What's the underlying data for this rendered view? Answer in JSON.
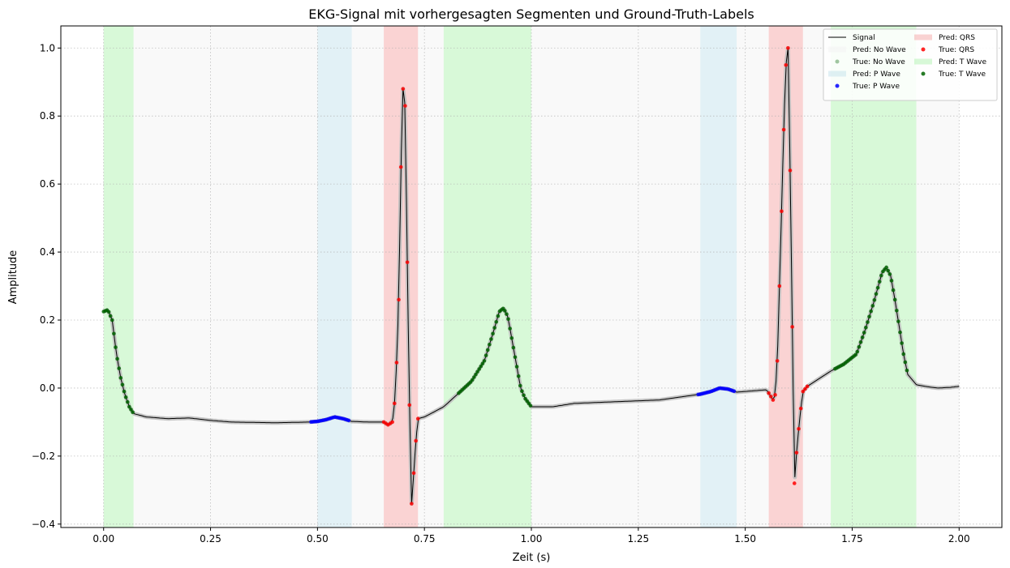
{
  "chart_data": {
    "type": "line",
    "title": "EKG-Signal mit vorhergesagten Segmenten und Ground-Truth-Labels",
    "xlabel": "Zeit (s)",
    "ylabel": "Amplitude",
    "xlim": [
      -0.1,
      2.1
    ],
    "ylim": [
      -0.41,
      1.065
    ],
    "x_ticks": [
      0.0,
      0.25,
      0.5,
      0.75,
      1.0,
      1.25,
      1.5,
      1.75,
      2.0
    ],
    "x_tick_labels": [
      "0.00",
      "0.25",
      "0.50",
      "0.75",
      "1.00",
      "1.25",
      "1.50",
      "1.75",
      "2.00"
    ],
    "y_ticks": [
      -0.4,
      -0.2,
      0.0,
      0.2,
      0.4,
      0.6,
      0.8,
      1.0
    ],
    "y_tick_labels": [
      "−0.4",
      "−0.2",
      "0.0",
      "0.2",
      "0.4",
      "0.6",
      "0.8",
      "1.0"
    ],
    "grid": true,
    "legend_position": "top-right",
    "colors": {
      "signal": "#000000",
      "pred_no_wave": "#f2f2f2",
      "true_no_wave": "#8fbc8f",
      "pred_p_wave": "#add8e6",
      "true_p_wave": "#0000ff",
      "pred_qrs": "#f08080",
      "true_qrs": "#ff0000",
      "pred_t_wave": "#90ee90",
      "true_t_wave": "#006400"
    },
    "legend": [
      {
        "key": "signal",
        "label": "Signal",
        "kind": "line"
      },
      {
        "key": "pred_no_wave",
        "label": "Pred: No Wave",
        "kind": "patch"
      },
      {
        "key": "true_no_wave",
        "label": "True: No Wave",
        "kind": "dot"
      },
      {
        "key": "pred_p_wave",
        "label": "Pred: P Wave",
        "kind": "patch"
      },
      {
        "key": "true_p_wave",
        "label": "True: P Wave",
        "kind": "dot"
      },
      {
        "key": "pred_qrs",
        "label": "Pred: QRS",
        "kind": "patch"
      },
      {
        "key": "true_qrs",
        "label": "True: QRS",
        "kind": "dot"
      },
      {
        "key": "pred_t_wave",
        "label": "Pred: T Wave",
        "kind": "patch"
      },
      {
        "key": "true_t_wave",
        "label": "True: T Wave",
        "kind": "dot"
      }
    ],
    "predicted_segments": [
      {
        "class": "pred_t_wave",
        "start": 0.0,
        "end": 0.07
      },
      {
        "class": "pred_no_wave",
        "start": 0.07,
        "end": 0.5
      },
      {
        "class": "pred_p_wave",
        "start": 0.5,
        "end": 0.58
      },
      {
        "class": "pred_no_wave",
        "start": 0.58,
        "end": 0.655
      },
      {
        "class": "pred_qrs",
        "start": 0.655,
        "end": 0.735
      },
      {
        "class": "pred_no_wave",
        "start": 0.735,
        "end": 0.795
      },
      {
        "class": "pred_t_wave",
        "start": 0.795,
        "end": 1.0
      },
      {
        "class": "pred_no_wave",
        "start": 1.0,
        "end": 1.395
      },
      {
        "class": "pred_p_wave",
        "start": 1.395,
        "end": 1.48
      },
      {
        "class": "pred_no_wave",
        "start": 1.48,
        "end": 1.555
      },
      {
        "class": "pred_qrs",
        "start": 1.555,
        "end": 1.635
      },
      {
        "class": "pred_no_wave",
        "start": 1.635,
        "end": 1.7
      },
      {
        "class": "pred_t_wave",
        "start": 1.7,
        "end": 1.9
      },
      {
        "class": "pred_no_wave",
        "start": 1.9,
        "end": 2.0
      }
    ],
    "signal_keypoints": [
      [
        0.0,
        0.225
      ],
      [
        0.01,
        0.23
      ],
      [
        0.02,
        0.2
      ],
      [
        0.03,
        0.1
      ],
      [
        0.04,
        0.03
      ],
      [
        0.05,
        -0.02
      ],
      [
        0.06,
        -0.055
      ],
      [
        0.07,
        -0.075
      ],
      [
        0.1,
        -0.085
      ],
      [
        0.15,
        -0.09
      ],
      [
        0.2,
        -0.088
      ],
      [
        0.25,
        -0.095
      ],
      [
        0.3,
        -0.1
      ],
      [
        0.4,
        -0.102
      ],
      [
        0.48,
        -0.1
      ],
      [
        0.5,
        -0.098
      ],
      [
        0.52,
        -0.093
      ],
      [
        0.54,
        -0.085
      ],
      [
        0.56,
        -0.09
      ],
      [
        0.58,
        -0.098
      ],
      [
        0.62,
        -0.1
      ],
      [
        0.655,
        -0.1
      ],
      [
        0.665,
        -0.108
      ],
      [
        0.675,
        -0.1
      ],
      [
        0.68,
        -0.045
      ],
      [
        0.685,
        0.075
      ],
      [
        0.69,
        0.26
      ],
      [
        0.695,
        0.65
      ],
      [
        0.7,
        0.88
      ],
      [
        0.705,
        0.83
      ],
      [
        0.71,
        0.37
      ],
      [
        0.715,
        -0.05
      ],
      [
        0.72,
        -0.34
      ],
      [
        0.725,
        -0.25
      ],
      [
        0.73,
        -0.155
      ],
      [
        0.735,
        -0.09
      ],
      [
        0.75,
        -0.085
      ],
      [
        0.795,
        -0.055
      ],
      [
        0.83,
        -0.015
      ],
      [
        0.86,
        0.02
      ],
      [
        0.89,
        0.08
      ],
      [
        0.91,
        0.16
      ],
      [
        0.925,
        0.225
      ],
      [
        0.935,
        0.235
      ],
      [
        0.945,
        0.21
      ],
      [
        0.955,
        0.14
      ],
      [
        0.965,
        0.07
      ],
      [
        0.975,
        0.0
      ],
      [
        0.985,
        -0.03
      ],
      [
        1.0,
        -0.055
      ],
      [
        1.05,
        -0.055
      ],
      [
        1.1,
        -0.045
      ],
      [
        1.2,
        -0.04
      ],
      [
        1.3,
        -0.035
      ],
      [
        1.395,
        -0.018
      ],
      [
        1.42,
        -0.01
      ],
      [
        1.44,
        0.0
      ],
      [
        1.46,
        -0.003
      ],
      [
        1.48,
        -0.012
      ],
      [
        1.55,
        -0.005
      ],
      [
        1.565,
        -0.035
      ],
      [
        1.57,
        -0.02
      ],
      [
        1.575,
        0.08
      ],
      [
        1.58,
        0.3
      ],
      [
        1.585,
        0.52
      ],
      [
        1.59,
        0.76
      ],
      [
        1.595,
        0.95
      ],
      [
        1.6,
        1.0
      ],
      [
        1.605,
        0.64
      ],
      [
        1.61,
        0.18
      ],
      [
        1.615,
        -0.28
      ],
      [
        1.62,
        -0.19
      ],
      [
        1.625,
        -0.12
      ],
      [
        1.63,
        -0.06
      ],
      [
        1.635,
        -0.01
      ],
      [
        1.645,
        0.005
      ],
      [
        1.7,
        0.05
      ],
      [
        1.73,
        0.07
      ],
      [
        1.76,
        0.1
      ],
      [
        1.78,
        0.17
      ],
      [
        1.8,
        0.25
      ],
      [
        1.82,
        0.34
      ],
      [
        1.83,
        0.355
      ],
      [
        1.84,
        0.33
      ],
      [
        1.85,
        0.26
      ],
      [
        1.86,
        0.18
      ],
      [
        1.87,
        0.1
      ],
      [
        1.88,
        0.04
      ],
      [
        1.9,
        0.01
      ],
      [
        1.92,
        0.005
      ],
      [
        1.95,
        0.0
      ],
      [
        1.98,
        0.002
      ],
      [
        2.0,
        0.005
      ]
    ],
    "true_label_segments": [
      {
        "class": "true_t_wave",
        "start": 0.0,
        "end": 0.07
      },
      {
        "class": "true_p_wave",
        "start": 0.485,
        "end": 0.575
      },
      {
        "class": "true_qrs",
        "start": 0.655,
        "end": 0.735
      },
      {
        "class": "true_t_wave",
        "start": 0.83,
        "end": 1.0
      },
      {
        "class": "true_p_wave",
        "start": 1.39,
        "end": 1.475
      },
      {
        "class": "true_qrs",
        "start": 1.555,
        "end": 1.645
      },
      {
        "class": "true_t_wave",
        "start": 1.71,
        "end": 1.88
      }
    ]
  }
}
